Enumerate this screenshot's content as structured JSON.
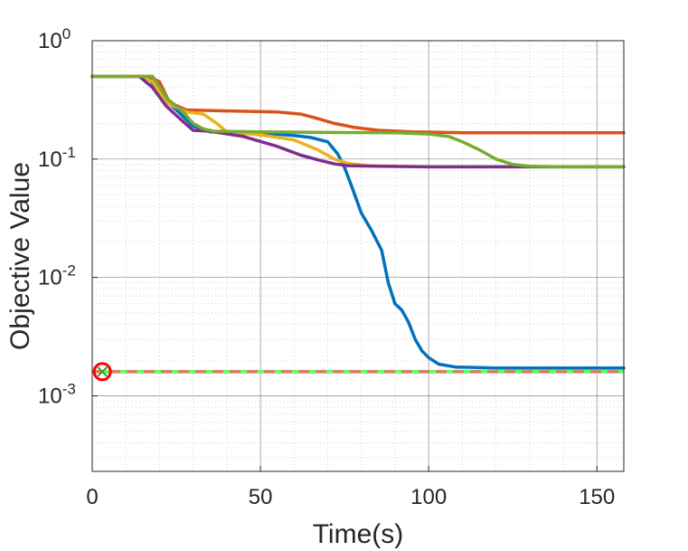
{
  "chart_data": {
    "type": "line",
    "title": "",
    "xlabel": "Time(s)",
    "ylabel": "Objective Value",
    "xlim": [
      0,
      158
    ],
    "ylim": [
      0.00023,
      1
    ],
    "yscale": "log",
    "grid": true,
    "minor_grid": true,
    "legend": "none",
    "x_ticks": [
      {
        "value": 0,
        "label": "0"
      },
      {
        "value": 50,
        "label": "50"
      },
      {
        "value": 100,
        "label": "100"
      },
      {
        "value": 150,
        "label": "150"
      }
    ],
    "y_ticks": [
      {
        "value": 0.001,
        "base": "10",
        "exp": "-3"
      },
      {
        "value": 0.01,
        "base": "10",
        "exp": "-2"
      },
      {
        "value": 0.1,
        "base": "10",
        "exp": "-1"
      },
      {
        "value": 1,
        "base": "10",
        "exp": "0"
      }
    ],
    "series": [
      {
        "color": "#0072BD",
        "points": [
          [
            0,
            0.5
          ],
          [
            14,
            0.5
          ],
          [
            17,
            0.48
          ],
          [
            20,
            0.35
          ],
          [
            25,
            0.26
          ],
          [
            30,
            0.19
          ],
          [
            35,
            0.17
          ],
          [
            45,
            0.165
          ],
          [
            55,
            0.162
          ],
          [
            60,
            0.158
          ],
          [
            65,
            0.152
          ],
          [
            70,
            0.14
          ],
          [
            73,
            0.11
          ],
          [
            75,
            0.085
          ],
          [
            77,
            0.06
          ],
          [
            80,
            0.035
          ],
          [
            83,
            0.025
          ],
          [
            86,
            0.017
          ],
          [
            88,
            0.009
          ],
          [
            90,
            0.006
          ],
          [
            92,
            0.0053
          ],
          [
            94,
            0.0042
          ],
          [
            96,
            0.003
          ],
          [
            98,
            0.0024
          ],
          [
            100,
            0.0021
          ],
          [
            103,
            0.00185
          ],
          [
            108,
            0.00175
          ],
          [
            120,
            0.00172
          ],
          [
            158,
            0.00172
          ]
        ]
      },
      {
        "color": "#D95319",
        "points": [
          [
            0,
            0.5
          ],
          [
            17,
            0.5
          ],
          [
            20,
            0.45
          ],
          [
            23,
            0.3
          ],
          [
            28,
            0.26
          ],
          [
            40,
            0.255
          ],
          [
            55,
            0.25
          ],
          [
            62,
            0.24
          ],
          [
            67,
            0.22
          ],
          [
            72,
            0.2
          ],
          [
            78,
            0.185
          ],
          [
            85,
            0.175
          ],
          [
            95,
            0.17
          ],
          [
            110,
            0.167
          ],
          [
            158,
            0.167
          ]
        ]
      },
      {
        "color": "#EDB120",
        "points": [
          [
            0,
            0.5
          ],
          [
            14,
            0.5
          ],
          [
            18,
            0.45
          ],
          [
            22,
            0.3
          ],
          [
            28,
            0.25
          ],
          [
            33,
            0.24
          ],
          [
            37,
            0.2
          ],
          [
            40,
            0.17
          ],
          [
            50,
            0.16
          ],
          [
            60,
            0.145
          ],
          [
            67,
            0.12
          ],
          [
            72,
            0.1
          ],
          [
            76,
            0.092
          ],
          [
            82,
            0.088
          ],
          [
            90,
            0.087
          ],
          [
            100,
            0.086
          ],
          [
            158,
            0.086
          ]
        ]
      },
      {
        "color": "#7E2F8E",
        "points": [
          [
            0,
            0.5
          ],
          [
            14,
            0.5
          ],
          [
            18,
            0.4
          ],
          [
            22,
            0.28
          ],
          [
            26,
            0.22
          ],
          [
            30,
            0.175
          ],
          [
            35,
            0.172
          ],
          [
            45,
            0.155
          ],
          [
            55,
            0.128
          ],
          [
            62,
            0.108
          ],
          [
            68,
            0.097
          ],
          [
            72,
            0.091
          ],
          [
            76,
            0.088
          ],
          [
            85,
            0.087
          ],
          [
            100,
            0.086
          ],
          [
            158,
            0.086
          ]
        ]
      },
      {
        "color": "#77AC30",
        "points": [
          [
            0,
            0.5
          ],
          [
            18,
            0.5
          ],
          [
            22,
            0.33
          ],
          [
            27,
            0.25
          ],
          [
            30,
            0.2
          ],
          [
            33,
            0.18
          ],
          [
            36,
            0.172
          ],
          [
            50,
            0.17
          ],
          [
            70,
            0.168
          ],
          [
            90,
            0.167
          ],
          [
            100,
            0.163
          ],
          [
            106,
            0.155
          ],
          [
            110,
            0.14
          ],
          [
            115,
            0.12
          ],
          [
            120,
            0.1
          ],
          [
            125,
            0.09
          ],
          [
            130,
            0.087
          ],
          [
            140,
            0.086
          ],
          [
            158,
            0.086
          ]
        ]
      }
    ],
    "reference_line": {
      "value": 0.0016,
      "colors": [
        "#5EFF5E",
        "#F26B6B"
      ],
      "style": "dashed"
    },
    "marker": {
      "x": 3,
      "y": 0.0016,
      "color": "#FF0000",
      "shape": "circle-x"
    }
  }
}
